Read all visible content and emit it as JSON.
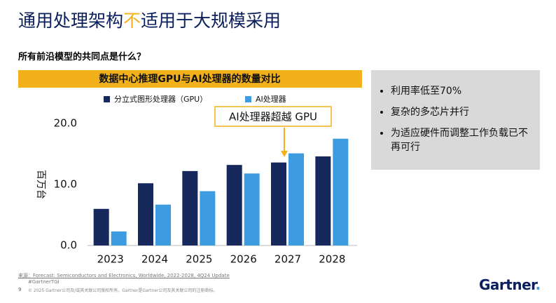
{
  "title_parts": [
    "通用处理架构",
    "不",
    "适用于大规模采用"
  ],
  "subtitle": "所有前沿模型的共同点是什么？",
  "bullets": [
    "利用率低至70%",
    "复杂的多芯片并行",
    "为适应硬件而调整工作负载已不再可行"
  ],
  "source": "来源：Forecast: Semiconductors and Electronics, Worldwide, 2022-2028, 4Q24 Update",
  "hashtag": "#GartnerTGI",
  "page_number": "9",
  "copyright": "© 2025 Gartner公司及/或其关联公司版权所有。Gartner是Gartner公司及其关联公司的注册商标。",
  "logo": "Gartner",
  "chart_data": {
    "type": "bar",
    "title": "数据中心推理GPU与AI处理器的数量对比",
    "y_label": "百万台",
    "annotation": "AI处理器超越 GPU",
    "categories": [
      "2023",
      "2024",
      "2025",
      "2026",
      "2027",
      "2028"
    ],
    "series": [
      {
        "name": "分立式图形处理器（GPU）",
        "color": "#16285c",
        "values": [
          6.0,
          10.2,
          12.2,
          13.2,
          13.6,
          14.6
        ]
      },
      {
        "name": "AI处理器",
        "color": "#3d9be0",
        "values": [
          2.3,
          6.7,
          8.9,
          11.8,
          15.1,
          17.5
        ]
      }
    ],
    "ylim": [
      0,
      20
    ],
    "yticks": [
      {
        "value": 0,
        "label": "0.0"
      },
      {
        "value": 10,
        "label": "10.0"
      },
      {
        "value": 20,
        "label": "20.0"
      }
    ],
    "grid": false
  }
}
